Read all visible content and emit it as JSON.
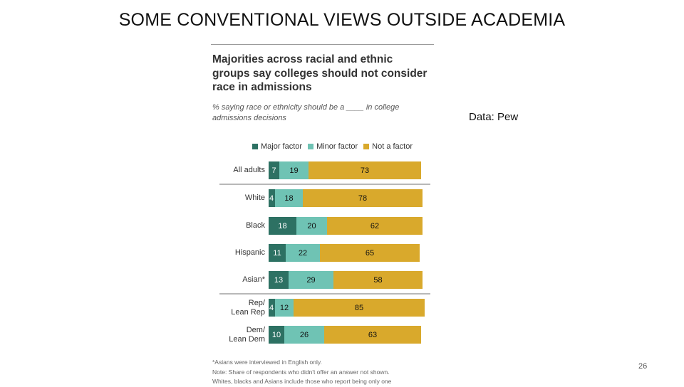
{
  "slide": {
    "title": "SOME CONVENTIONAL VIEWS OUTSIDE ACADEMIA",
    "source": "Data: Pew",
    "page_number": "26"
  },
  "colors": {
    "major": "#2d7163",
    "minor": "#6fc3b4",
    "not": "#d9a92c"
  },
  "chart_data": {
    "type": "bar",
    "orientation": "horizontal",
    "stacked": true,
    "title": "Majorities across racial and ethnic groups say colleges should not consider race in admissions",
    "subtitle": "% saying race or ethnicity should be a ____ in college admissions decisions",
    "xlim": [
      0,
      100
    ],
    "legend_position": "top",
    "categories": [
      "All adults",
      "White",
      "Black",
      "Hispanic",
      "Asian*",
      "Rep/\nLean Rep",
      "Dem/\nLean Dem"
    ],
    "series": [
      {
        "name": "Major factor",
        "values": [
          7,
          4,
          18,
          11,
          13,
          4,
          10
        ]
      },
      {
        "name": "Minor factor",
        "values": [
          19,
          18,
          20,
          22,
          29,
          12,
          26
        ]
      },
      {
        "name": "Not a factor",
        "values": [
          73,
          78,
          62,
          65,
          58,
          85,
          63
        ]
      }
    ],
    "notes": [
      "*Asians were interviewed in English only.",
      "Note: Share of respondents who didn't offer an answer not shown.",
      "Whites, blacks and Asians include those who report being only one"
    ]
  }
}
